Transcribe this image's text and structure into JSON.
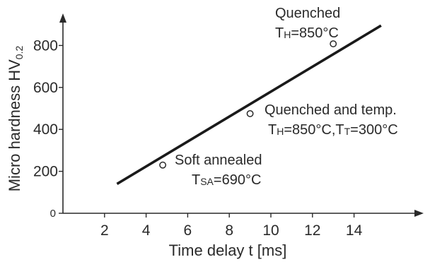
{
  "chart_data": {
    "type": "scatter",
    "title": "",
    "xlabel": "Time delay t [ms]",
    "ylabel": {
      "main": "Micro hardness HV",
      "sub": "0.2"
    },
    "xlim": [
      0,
      16
    ],
    "ylim": [
      0,
      900
    ],
    "xticks": [
      2,
      4,
      6,
      8,
      10,
      12,
      14
    ],
    "yticks": [
      0,
      200,
      400,
      600,
      800
    ],
    "grid": false,
    "series": [
      {
        "x": [
          4.8,
          9.0,
          13.0
        ],
        "y": [
          230,
          475,
          808
        ]
      }
    ],
    "trend_line": {
      "x": [
        2.6,
        15.3
      ],
      "y": [
        140,
        895
      ]
    },
    "annotations": {
      "quenched": {
        "title": "Quenched",
        "line_parts": [
          {
            "text": "T",
            "sub": "H"
          },
          {
            "text": "=850°C",
            "sub": ""
          }
        ]
      },
      "quenched_temp": {
        "title": "Quenched and temp.",
        "line_parts": [
          {
            "text": "T",
            "sub": "H"
          },
          {
            "text": "=850°C,T",
            "sub": "T"
          },
          {
            "text": "=300°C",
            "sub": ""
          }
        ]
      },
      "soft_annealed": {
        "title": "Soft annealed",
        "line_parts": [
          {
            "text": "T",
            "sub": "SA"
          },
          {
            "text": "=690°C",
            "sub": ""
          }
        ]
      }
    },
    "colors": {
      "axis": "#2a2a2a",
      "trend": "#1a1a1a",
      "point": "#2a2a2a",
      "text": "#2a2a2a"
    }
  }
}
